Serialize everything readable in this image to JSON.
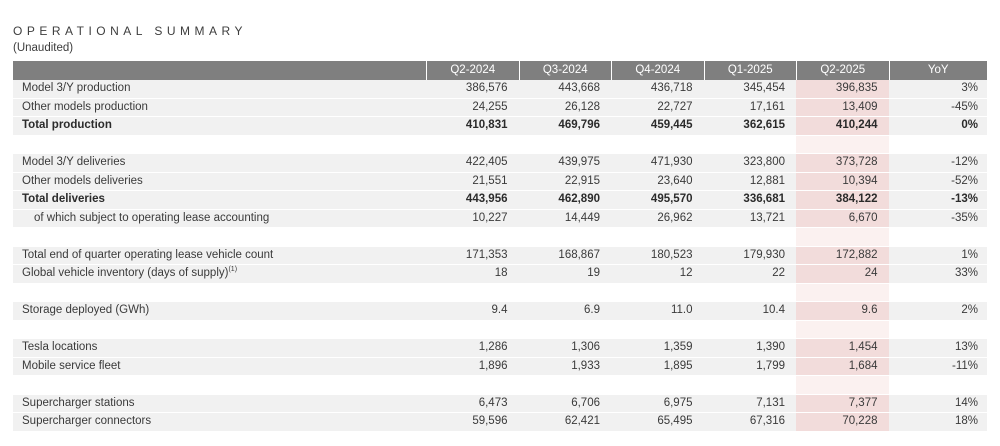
{
  "page": {
    "title": "OPERATIONAL SUMMARY",
    "subtitle": "(Unaudited)"
  },
  "table": {
    "columns": [
      "Q2-2024",
      "Q3-2024",
      "Q4-2024",
      "Q1-2025",
      "Q2-2025",
      "YoY"
    ],
    "highlight_column": "Q2-2025",
    "colors": {
      "header_bg": "#7f7f7f",
      "header_text": "#ffffff",
      "row_bg": "#f1f1f1",
      "highlight_bg": "#f2dcdb",
      "highlight_gap_bg": "#fbf1f0",
      "text": "#3a3a3a"
    },
    "sections": [
      {
        "rows": [
          {
            "label": "Model 3/Y production",
            "bold": false,
            "indent": false,
            "values": [
              "386,576",
              "443,668",
              "436,718",
              "345,454",
              "396,835",
              "3%"
            ]
          },
          {
            "label": "Other models production",
            "bold": false,
            "indent": false,
            "values": [
              "24,255",
              "26,128",
              "22,727",
              "17,161",
              "13,409",
              "-45%"
            ]
          },
          {
            "label": "Total production",
            "bold": true,
            "indent": false,
            "values": [
              "410,831",
              "469,796",
              "459,445",
              "362,615",
              "410,244",
              "0%"
            ]
          }
        ]
      },
      {
        "rows": [
          {
            "label": "Model 3/Y deliveries",
            "bold": false,
            "indent": false,
            "values": [
              "422,405",
              "439,975",
              "471,930",
              "323,800",
              "373,728",
              "-12%"
            ]
          },
          {
            "label": "Other models deliveries",
            "bold": false,
            "indent": false,
            "values": [
              "21,551",
              "22,915",
              "23,640",
              "12,881",
              "10,394",
              "-52%"
            ]
          },
          {
            "label": "Total deliveries",
            "bold": true,
            "indent": false,
            "values": [
              "443,956",
              "462,890",
              "495,570",
              "336,681",
              "384,122",
              "-13%"
            ]
          },
          {
            "label": "of which subject to operating lease accounting",
            "bold": false,
            "indent": true,
            "values": [
              "10,227",
              "14,449",
              "26,962",
              "13,721",
              "6,670",
              "-35%"
            ]
          }
        ]
      },
      {
        "rows": [
          {
            "label": "Total end of quarter operating lease vehicle count",
            "bold": false,
            "indent": false,
            "values": [
              "171,353",
              "168,867",
              "180,523",
              "179,930",
              "172,882",
              "1%"
            ]
          },
          {
            "label": "Global vehicle inventory (days of supply)",
            "sup": "(1)",
            "bold": false,
            "indent": false,
            "values": [
              "18",
              "19",
              "12",
              "22",
              "24",
              "33%"
            ]
          }
        ]
      },
      {
        "rows": [
          {
            "label": "Storage deployed (GWh)",
            "bold": false,
            "indent": false,
            "values": [
              "9.4",
              "6.9",
              "11.0",
              "10.4",
              "9.6",
              "2%"
            ]
          }
        ]
      },
      {
        "rows": [
          {
            "label": "Tesla locations",
            "bold": false,
            "indent": false,
            "values": [
              "1,286",
              "1,306",
              "1,359",
              "1,390",
              "1,454",
              "13%"
            ]
          },
          {
            "label": "Mobile service fleet",
            "bold": false,
            "indent": false,
            "values": [
              "1,896",
              "1,933",
              "1,895",
              "1,799",
              "1,684",
              "-11%"
            ]
          }
        ]
      },
      {
        "rows": [
          {
            "label": "Supercharger stations",
            "bold": false,
            "indent": false,
            "values": [
              "6,473",
              "6,706",
              "6,975",
              "7,131",
              "7,377",
              "14%"
            ]
          },
          {
            "label": "Supercharger connectors",
            "bold": false,
            "indent": false,
            "values": [
              "59,596",
              "62,421",
              "65,495",
              "67,316",
              "70,228",
              "18%"
            ]
          }
        ]
      }
    ]
  }
}
